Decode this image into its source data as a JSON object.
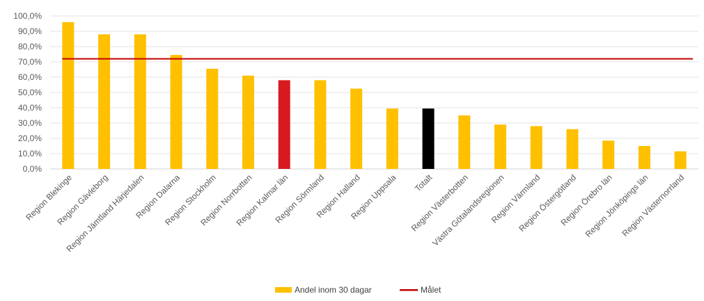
{
  "chart_data": {
    "type": "bar",
    "categories": [
      "Region Blekinge",
      "Region Gävleborg",
      "Region Jämtland Härjedalen",
      "Region Dalarna",
      "Region Stockholm",
      "Region Norrbotten",
      "Region Kalmar län",
      "Region Sörmland",
      "Region Halland",
      "Region Uppsala",
      "Totalt",
      "Region Västerbotten",
      "Västra Götalandsregionen",
      "Region Värmland",
      "Region Östergötland",
      "Region Örebro län",
      "Region Jönköpings län",
      "Region Västernorrland"
    ],
    "series": [
      {
        "name": "Andel inom 30 dagar",
        "values": [
          96.0,
          88.0,
          88.0,
          74.5,
          65.5,
          61.0,
          58.0,
          58.0,
          52.5,
          39.5,
          39.5,
          35.0,
          29.0,
          28.0,
          26.0,
          18.5,
          15.0,
          11.5
        ],
        "color": "#FFC000",
        "bar_colors": [
          "#FFC000",
          "#FFC000",
          "#FFC000",
          "#FFC000",
          "#FFC000",
          "#FFC000",
          "#D71920",
          "#FFC000",
          "#FFC000",
          "#FFC000",
          "#000000",
          "#FFC000",
          "#FFC000",
          "#FFC000",
          "#FFC000",
          "#FFC000",
          "#FFC000",
          "#FFC000"
        ]
      },
      {
        "name": "Målet",
        "type": "line",
        "value": 72.0,
        "color": "#C00000"
      }
    ],
    "yticks": [
      "0,0%",
      "10,0%",
      "20,0%",
      "30,0%",
      "40,0%",
      "50,0%",
      "60,0%",
      "70,0%",
      "80,0%",
      "90,0%",
      "100,0%"
    ],
    "ylim": [
      0,
      100
    ],
    "grid": true,
    "legend_position": "bottom",
    "title": "",
    "xlabel": "",
    "ylabel": ""
  }
}
